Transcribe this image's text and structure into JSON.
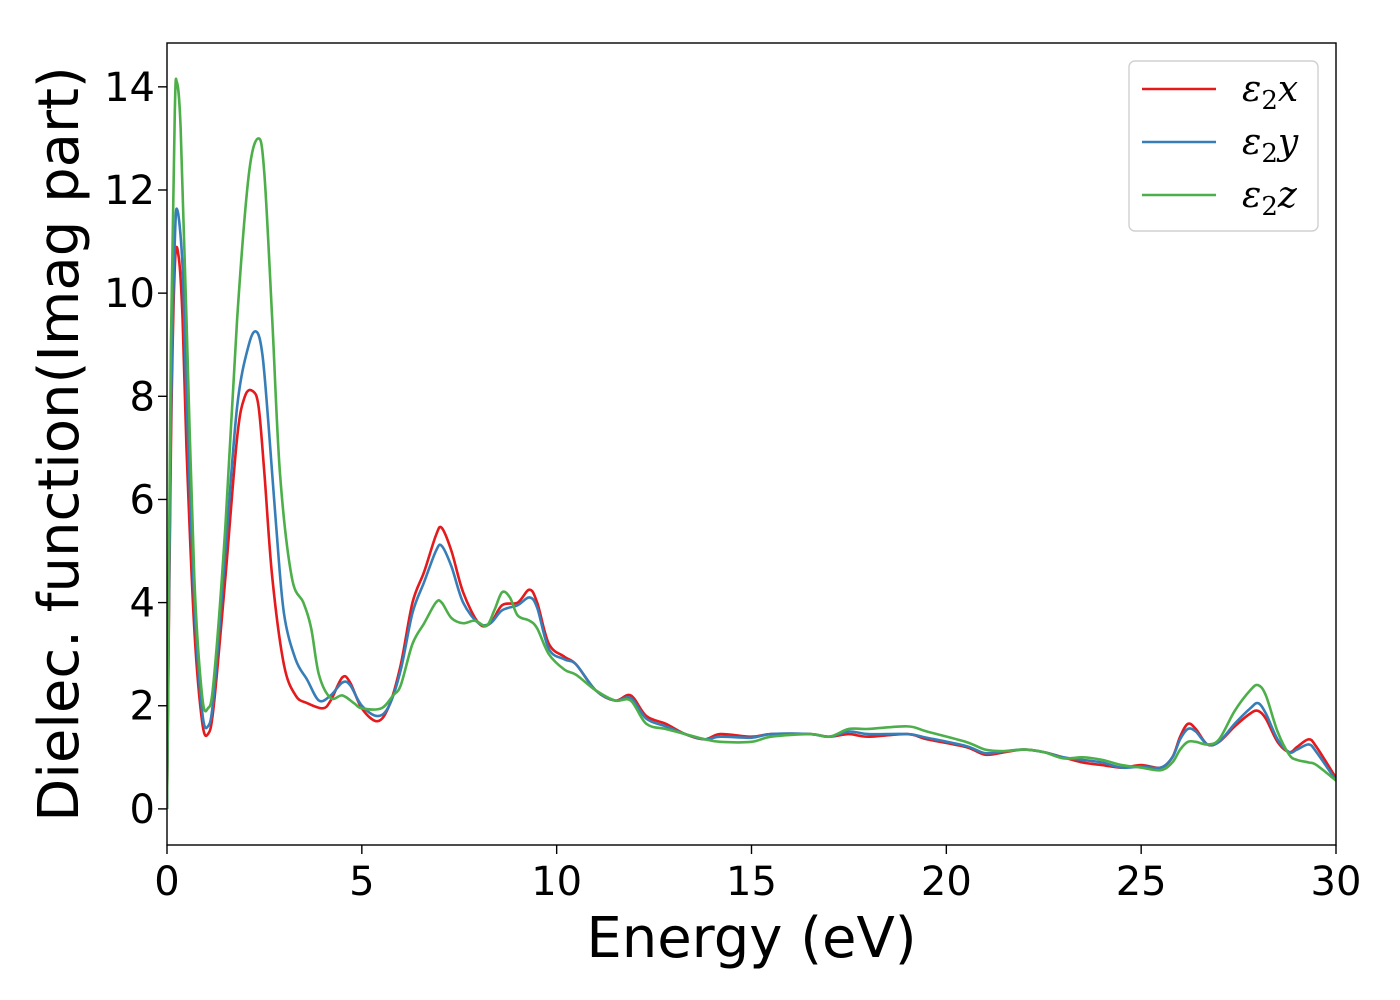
{
  "chart_data": {
    "type": "line",
    "title": "",
    "xlabel": "Energy (eV)",
    "ylabel": "Dielec. function(Imag part)",
    "xlim": [
      0,
      30
    ],
    "ylim": [
      -0.7,
      14.85
    ],
    "xticks": [
      0,
      5,
      10,
      15,
      20,
      25,
      30
    ],
    "yticks": [
      0,
      2,
      4,
      6,
      8,
      10,
      12,
      14
    ],
    "grid": false,
    "legend_position": "top-right",
    "series": [
      {
        "name": "ε2x",
        "legend_base": "ε",
        "legend_sub": "2",
        "legend_suffix": "x",
        "color": "#e41a1c",
        "points": [
          [
            0,
            0
          ],
          [
            0.1,
            7.0
          ],
          [
            0.2,
            10.5
          ],
          [
            0.3,
            10.7
          ],
          [
            0.4,
            9.5
          ],
          [
            0.5,
            7.0
          ],
          [
            0.7,
            3.5
          ],
          [
            0.9,
            1.7
          ],
          [
            1.05,
            1.45
          ],
          [
            1.2,
            2.0
          ],
          [
            1.5,
            4.5
          ],
          [
            1.8,
            7.2
          ],
          [
            2.0,
            8.0
          ],
          [
            2.2,
            8.1
          ],
          [
            2.35,
            7.8
          ],
          [
            2.5,
            6.5
          ],
          [
            2.7,
            4.5
          ],
          [
            3.0,
            2.8
          ],
          [
            3.3,
            2.2
          ],
          [
            3.6,
            2.05
          ],
          [
            4.0,
            1.95
          ],
          [
            4.2,
            2.1
          ],
          [
            4.5,
            2.55
          ],
          [
            4.7,
            2.45
          ],
          [
            5.0,
            1.95
          ],
          [
            5.4,
            1.7
          ],
          [
            5.7,
            2.0
          ],
          [
            6.0,
            2.8
          ],
          [
            6.3,
            4.0
          ],
          [
            6.6,
            4.6
          ],
          [
            6.9,
            5.3
          ],
          [
            7.05,
            5.45
          ],
          [
            7.3,
            5.0
          ],
          [
            7.6,
            4.2
          ],
          [
            8.0,
            3.6
          ],
          [
            8.3,
            3.6
          ],
          [
            8.6,
            3.95
          ],
          [
            9.0,
            4.0
          ],
          [
            9.3,
            4.25
          ],
          [
            9.5,
            4.0
          ],
          [
            9.8,
            3.2
          ],
          [
            10.2,
            2.95
          ],
          [
            10.5,
            2.8
          ],
          [
            11.0,
            2.3
          ],
          [
            11.5,
            2.1
          ],
          [
            11.9,
            2.2
          ],
          [
            12.3,
            1.8
          ],
          [
            12.8,
            1.65
          ],
          [
            13.3,
            1.45
          ],
          [
            13.8,
            1.35
          ],
          [
            14.2,
            1.45
          ],
          [
            15.0,
            1.4
          ],
          [
            15.5,
            1.45
          ],
          [
            16.5,
            1.45
          ],
          [
            17.0,
            1.4
          ],
          [
            17.5,
            1.45
          ],
          [
            18.0,
            1.4
          ],
          [
            19.0,
            1.45
          ],
          [
            19.5,
            1.35
          ],
          [
            20.5,
            1.2
          ],
          [
            21.0,
            1.05
          ],
          [
            21.5,
            1.1
          ],
          [
            22.0,
            1.15
          ],
          [
            22.5,
            1.1
          ],
          [
            23.0,
            1.0
          ],
          [
            23.5,
            0.9
          ],
          [
            24.0,
            0.85
          ],
          [
            24.5,
            0.8
          ],
          [
            25.0,
            0.85
          ],
          [
            25.5,
            0.8
          ],
          [
            25.8,
            1.0
          ],
          [
            26.0,
            1.4
          ],
          [
            26.2,
            1.65
          ],
          [
            26.4,
            1.55
          ],
          [
            26.7,
            1.25
          ],
          [
            27.0,
            1.3
          ],
          [
            27.4,
            1.6
          ],
          [
            27.8,
            1.85
          ],
          [
            28.0,
            1.9
          ],
          [
            28.2,
            1.75
          ],
          [
            28.5,
            1.3
          ],
          [
            28.8,
            1.1
          ],
          [
            29.0,
            1.2
          ],
          [
            29.3,
            1.35
          ],
          [
            29.5,
            1.2
          ],
          [
            30.0,
            0.6
          ]
        ]
      },
      {
        "name": "ε2y",
        "legend_base": "ε",
        "legend_sub": "2",
        "legend_suffix": "y",
        "color": "#377eb8",
        "points": [
          [
            0,
            0
          ],
          [
            0.1,
            7.5
          ],
          [
            0.2,
            11.0
          ],
          [
            0.27,
            11.6
          ],
          [
            0.4,
            10.5
          ],
          [
            0.5,
            8.0
          ],
          [
            0.7,
            4.0
          ],
          [
            0.9,
            1.9
          ],
          [
            1.05,
            1.6
          ],
          [
            1.2,
            2.2
          ],
          [
            1.5,
            5.0
          ],
          [
            1.8,
            7.8
          ],
          [
            2.1,
            9.0
          ],
          [
            2.3,
            9.25
          ],
          [
            2.45,
            8.8
          ],
          [
            2.6,
            7.5
          ],
          [
            2.8,
            5.5
          ],
          [
            3.0,
            3.8
          ],
          [
            3.3,
            2.9
          ],
          [
            3.6,
            2.5
          ],
          [
            3.9,
            2.1
          ],
          [
            4.2,
            2.2
          ],
          [
            4.5,
            2.45
          ],
          [
            4.7,
            2.4
          ],
          [
            5.0,
            2.0
          ],
          [
            5.4,
            1.8
          ],
          [
            5.7,
            2.0
          ],
          [
            6.0,
            2.7
          ],
          [
            6.3,
            3.8
          ],
          [
            6.6,
            4.4
          ],
          [
            6.9,
            5.0
          ],
          [
            7.05,
            5.1
          ],
          [
            7.3,
            4.7
          ],
          [
            7.6,
            4.0
          ],
          [
            8.0,
            3.6
          ],
          [
            8.3,
            3.6
          ],
          [
            8.6,
            3.85
          ],
          [
            9.0,
            3.95
          ],
          [
            9.3,
            4.1
          ],
          [
            9.5,
            3.9
          ],
          [
            9.8,
            3.1
          ],
          [
            10.2,
            2.9
          ],
          [
            10.5,
            2.8
          ],
          [
            11.0,
            2.3
          ],
          [
            11.5,
            2.1
          ],
          [
            11.9,
            2.15
          ],
          [
            12.3,
            1.75
          ],
          [
            12.8,
            1.6
          ],
          [
            13.3,
            1.45
          ],
          [
            13.8,
            1.35
          ],
          [
            14.2,
            1.4
          ],
          [
            15.0,
            1.38
          ],
          [
            15.5,
            1.45
          ],
          [
            16.5,
            1.45
          ],
          [
            17.0,
            1.4
          ],
          [
            17.5,
            1.5
          ],
          [
            18.0,
            1.45
          ],
          [
            19.0,
            1.45
          ],
          [
            19.5,
            1.38
          ],
          [
            20.5,
            1.22
          ],
          [
            21.0,
            1.08
          ],
          [
            21.5,
            1.12
          ],
          [
            22.0,
            1.15
          ],
          [
            22.5,
            1.1
          ],
          [
            23.0,
            1.0
          ],
          [
            23.5,
            0.95
          ],
          [
            24.0,
            0.9
          ],
          [
            24.5,
            0.8
          ],
          [
            25.0,
            0.82
          ],
          [
            25.5,
            0.8
          ],
          [
            25.8,
            1.0
          ],
          [
            26.0,
            1.35
          ],
          [
            26.2,
            1.55
          ],
          [
            26.4,
            1.5
          ],
          [
            26.7,
            1.25
          ],
          [
            27.0,
            1.3
          ],
          [
            27.4,
            1.65
          ],
          [
            27.8,
            1.95
          ],
          [
            28.0,
            2.05
          ],
          [
            28.2,
            1.85
          ],
          [
            28.5,
            1.35
          ],
          [
            28.8,
            1.1
          ],
          [
            29.0,
            1.15
          ],
          [
            29.3,
            1.25
          ],
          [
            29.5,
            1.1
          ],
          [
            30.0,
            0.55
          ]
        ]
      },
      {
        "name": "ε2z",
        "legend_base": "ε",
        "legend_sub": "2",
        "legend_suffix": "z",
        "color": "#4daf4a",
        "points": [
          [
            0,
            0
          ],
          [
            0.1,
            9.0
          ],
          [
            0.2,
            13.5
          ],
          [
            0.25,
            14.1
          ],
          [
            0.35,
            13.2
          ],
          [
            0.5,
            9.5
          ],
          [
            0.7,
            4.5
          ],
          [
            0.9,
            2.2
          ],
          [
            1.05,
            1.95
          ],
          [
            1.2,
            2.5
          ],
          [
            1.5,
            5.5
          ],
          [
            1.8,
            9.5
          ],
          [
            2.1,
            12.3
          ],
          [
            2.35,
            13.0
          ],
          [
            2.5,
            12.3
          ],
          [
            2.7,
            9.5
          ],
          [
            2.9,
            6.5
          ],
          [
            3.2,
            4.5
          ],
          [
            3.5,
            4.0
          ],
          [
            3.7,
            3.5
          ],
          [
            3.9,
            2.6
          ],
          [
            4.2,
            2.15
          ],
          [
            4.5,
            2.2
          ],
          [
            4.8,
            2.05
          ],
          [
            5.0,
            1.95
          ],
          [
            5.5,
            1.95
          ],
          [
            5.8,
            2.2
          ],
          [
            6.0,
            2.4
          ],
          [
            6.3,
            3.2
          ],
          [
            6.6,
            3.6
          ],
          [
            6.9,
            4.0
          ],
          [
            7.05,
            4.0
          ],
          [
            7.3,
            3.7
          ],
          [
            7.6,
            3.6
          ],
          [
            7.9,
            3.65
          ],
          [
            8.2,
            3.55
          ],
          [
            8.4,
            3.85
          ],
          [
            8.6,
            4.2
          ],
          [
            8.8,
            4.1
          ],
          [
            9.0,
            3.75
          ],
          [
            9.3,
            3.65
          ],
          [
            9.5,
            3.5
          ],
          [
            9.8,
            3.0
          ],
          [
            10.2,
            2.7
          ],
          [
            10.5,
            2.6
          ],
          [
            11.0,
            2.3
          ],
          [
            11.5,
            2.1
          ],
          [
            11.9,
            2.1
          ],
          [
            12.3,
            1.65
          ],
          [
            12.8,
            1.55
          ],
          [
            13.3,
            1.45
          ],
          [
            13.8,
            1.35
          ],
          [
            14.2,
            1.3
          ],
          [
            15.0,
            1.3
          ],
          [
            15.5,
            1.4
          ],
          [
            16.5,
            1.45
          ],
          [
            17.0,
            1.4
          ],
          [
            17.5,
            1.55
          ],
          [
            18.0,
            1.55
          ],
          [
            19.0,
            1.6
          ],
          [
            19.5,
            1.5
          ],
          [
            20.5,
            1.3
          ],
          [
            21.0,
            1.15
          ],
          [
            21.5,
            1.12
          ],
          [
            22.0,
            1.15
          ],
          [
            22.5,
            1.1
          ],
          [
            23.0,
            0.98
          ],
          [
            23.5,
            1.0
          ],
          [
            24.0,
            0.95
          ],
          [
            24.5,
            0.85
          ],
          [
            25.0,
            0.8
          ],
          [
            25.5,
            0.75
          ],
          [
            25.8,
            0.9
          ],
          [
            26.0,
            1.15
          ],
          [
            26.2,
            1.3
          ],
          [
            26.4,
            1.3
          ],
          [
            26.7,
            1.25
          ],
          [
            27.0,
            1.35
          ],
          [
            27.4,
            1.9
          ],
          [
            27.8,
            2.3
          ],
          [
            28.0,
            2.4
          ],
          [
            28.2,
            2.2
          ],
          [
            28.5,
            1.5
          ],
          [
            28.8,
            1.05
          ],
          [
            29.0,
            0.95
          ],
          [
            29.3,
            0.9
          ],
          [
            29.5,
            0.85
          ],
          [
            30.0,
            0.55
          ]
        ]
      }
    ]
  }
}
